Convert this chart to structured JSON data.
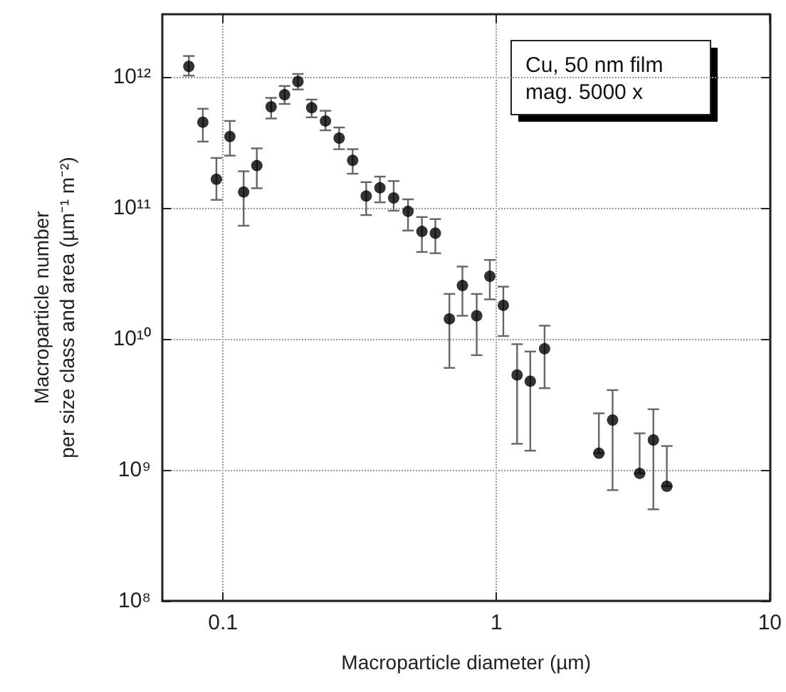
{
  "chart_data": {
    "type": "scatter",
    "xlabel": "Macroparticle diameter (µm)",
    "ylabel": "Macroparticle number\nper size class and area (µm⁻¹ m⁻²)",
    "annotations": [
      "Cu, 50 nm film\nmag. 5000 x"
    ],
    "log": "xy",
    "xlim": [
      0.06,
      10
    ],
    "xticks": [
      0.1,
      1,
      10
    ],
    "ylim": [
      100000000.0,
      3000000000000.0
    ],
    "yticks": [
      {
        "value": 100000000.0,
        "label": "10⁸"
      },
      {
        "value": 1000000000.0,
        "label": "10⁹"
      },
      {
        "value": 10000000000.0,
        "label": "10¹⁰"
      },
      {
        "value": 100000000000.0,
        "label": "10¹¹"
      },
      {
        "value": 1000000000000.0,
        "label": "10¹²"
      }
    ],
    "grid": true,
    "marker": "circle",
    "series": [
      {
        "color": "#000000",
        "x": [
          0.075,
          0.0844,
          0.0946,
          0.106,
          0.119,
          0.133,
          0.15,
          0.168,
          0.188,
          0.211,
          0.237,
          0.266,
          0.298,
          0.334,
          0.375,
          0.421,
          0.475,
          0.534,
          0.598,
          0.673,
          0.751,
          0.847,
          0.946,
          1.06,
          1.19,
          1.33,
          1.5,
          2.37,
          2.66,
          3.34,
          3.75,
          4.2
        ],
        "values": [
          1200000000000.0,
          450000000000.0,
          165000000000.0,
          350000000000.0,
          132000000000.0,
          210000000000.0,
          590000000000.0,
          730000000000.0,
          920000000000.0,
          580000000000.0,
          460000000000.0,
          340000000000.0,
          230000000000.0,
          123000000000.0,
          142000000000.0,
          119000000000.0,
          94000000000.0,
          66000000000.0,
          64000000000.0,
          14200000000.0,
          25500000000.0,
          15000000000.0,
          30000000000.0,
          18000000000.0,
          5300000000.0,
          4750000000.0,
          8400000000.0,
          1340000000.0,
          2400000000.0,
          940000000.0,
          1690000000.0,
          750000000.0
        ],
        "errors": [
          [
            1020000000000.0,
            1440000000000.0
          ],
          [
            320000000000.0,
            570000000000.0
          ],
          [
            115000000000.0,
            240000000000.0
          ],
          [
            250000000000.0,
            460000000000.0
          ],
          [
            73000000000.0,
            190000000000.0
          ],
          [
            141000000000.0,
            284000000000.0
          ],
          [
            480000000000.0,
            690000000000.0
          ],
          [
            620000000000.0,
            850000000000.0
          ],
          [
            800000000000.0,
            1050000000000.0
          ],
          [
            490000000000.0,
            670000000000.0
          ],
          [
            390000000000.0,
            550000000000.0
          ],
          [
            280000000000.0,
            410000000000.0
          ],
          [
            182000000000.0,
            280000000000.0
          ],
          [
            88000000000.0,
            157000000000.0
          ],
          [
            110000000000.0,
            173000000000.0
          ],
          [
            95000000000.0,
            160000000000.0
          ],
          [
            67000000000.0,
            116000000000.0
          ],
          [
            46000000000.0,
            85000000000.0
          ],
          [
            45000000000.0,
            82000000000.0
          ],
          [
            6000000000.0,
            22000000000.0
          ],
          [
            15000000000.0,
            35600000000.0
          ],
          [
            7500000000.0,
            22000000000.0
          ],
          [
            20000000000.0,
            40000000000.0
          ],
          [
            10500000000.0,
            25000000000.0
          ],
          [
            1580000000.0,
            9100000000.0
          ],
          [
            1400000000.0,
            8000000000.0
          ],
          [
            4200000000.0,
            12600000000.0
          ],
          [
            1340000000.0,
            2700000000.0
          ],
          [
            700000000.0,
            4060000000.0
          ],
          [
            940000000.0,
            1900000000.0
          ],
          [
            500000000.0,
            2900000000.0
          ],
          [
            750000000.0,
            1520000000.0
          ]
        ]
      }
    ]
  }
}
